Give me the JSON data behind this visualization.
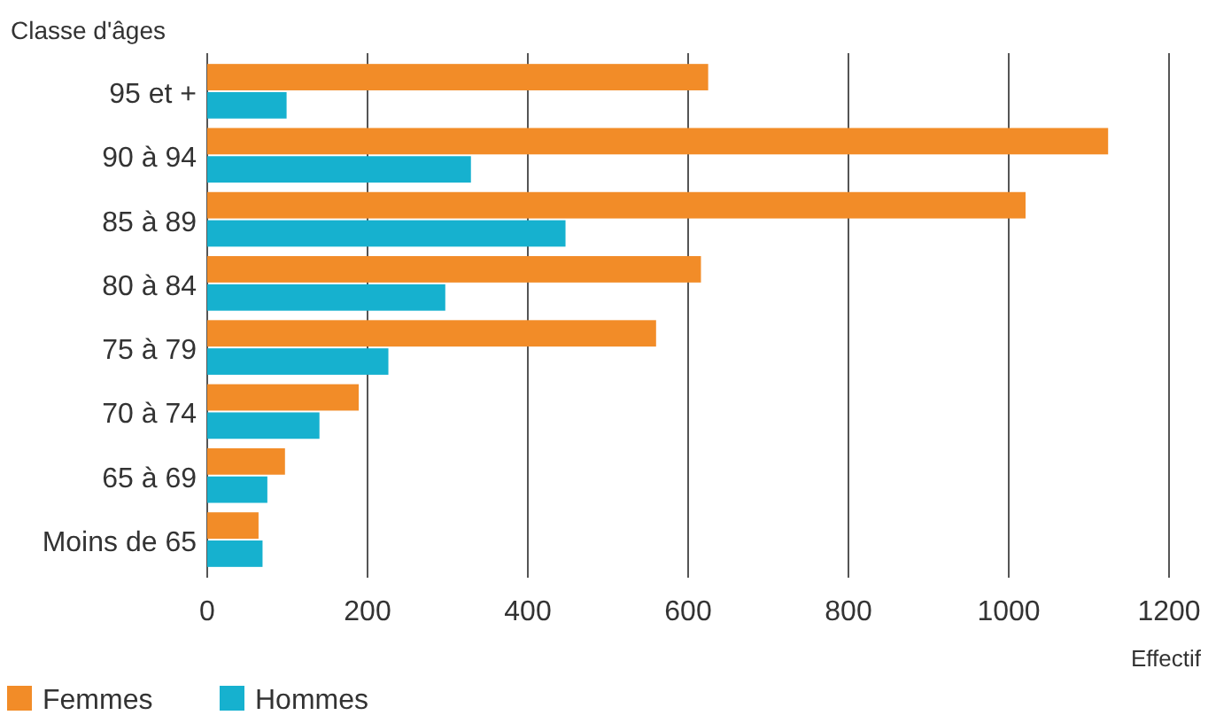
{
  "chart_data": {
    "type": "bar",
    "orientation": "horizontal",
    "ylabel": "Classe d'âges",
    "xlabel": "Effectif",
    "categories": [
      "95 et +",
      "90 à 94",
      "85 à 89",
      "80 à 84",
      "75 à 79",
      "70 à 74",
      "65 à 69",
      "Moins de 65"
    ],
    "series": [
      {
        "name": "Femmes",
        "color": "#f28c28",
        "values": [
          625,
          1124,
          1021,
          616,
          560,
          189,
          97,
          64
        ]
      },
      {
        "name": "Hommes",
        "color": "#16b1cf",
        "values": [
          99,
          329,
          447,
          297,
          226,
          140,
          75,
          69
        ]
      }
    ],
    "xlim": [
      0,
      1200
    ],
    "xticks": [
      0,
      200,
      400,
      600,
      800,
      1000,
      1200
    ],
    "grid": "x",
    "legend": "bottom left"
  }
}
